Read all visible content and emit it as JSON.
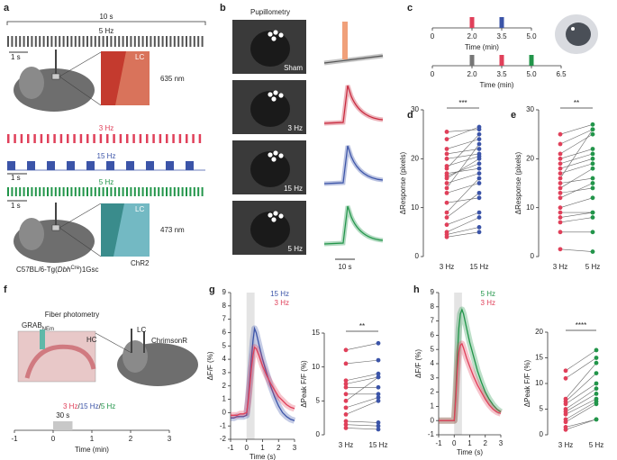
{
  "panel_labels": [
    "a",
    "b",
    "c",
    "d",
    "e",
    "f",
    "g",
    "h"
  ],
  "panel_a": {
    "duration": "10 s",
    "top_freq": "5 Hz",
    "scales": [
      "1 s",
      "1 s",
      "1 s"
    ],
    "region_top": "LC",
    "wavelength_top": "635 nm",
    "freq_red": "3 Hz",
    "freq_blue": "15 Hz",
    "freq_green": "5 Hz",
    "region_bottom": "LC",
    "opsin": "ChR2",
    "wavelength_bottom": "473 nm",
    "strain": "C57BL/6-Tg(",
    "strain_gene": "Dbh",
    "strain_sup": "Cre",
    "strain_end": ")1Gsc"
  },
  "panel_b": {
    "title": "Pupillometry",
    "conditions": [
      "Sham",
      "3 Hz",
      "15 Hz",
      "5 Hz"
    ],
    "scale": "10 s"
  },
  "panel_f": {
    "title": "Fiber photometry",
    "sensor": "GRAB",
    "sensor_sub": "NEm",
    "region_hc": "HC",
    "region_lc": "LC",
    "opsin": "ChrimsonR",
    "freqs": [
      "3 Hz",
      "15 Hz",
      "5 Hz"
    ],
    "separator": "/"
  },
  "chart_data": [
    {
      "type": "timeline",
      "xlim": [
        0,
        5
      ],
      "xticks": [
        0,
        {
          "value": 2,
          "label": "2.0"
        },
        {
          "value": 3.5,
          "label": "3.5"
        },
        {
          "value": 5,
          "label": "5.0"
        }
      ],
      "xlabel": "Time (min)",
      "events": [
        {
          "x": 2,
          "color": "#e0405a"
        },
        {
          "x": 3.5,
          "color": "#3b54a8"
        }
      ]
    },
    {
      "type": "timeline",
      "xlim": [
        0,
        6.5
      ],
      "xticks": [
        0,
        {
          "value": 2,
          "label": "2.0"
        },
        {
          "value": 3.5,
          "label": "3.5"
        },
        {
          "value": 5,
          "label": "5.0"
        },
        {
          "value": 6.5,
          "label": "6.5"
        }
      ],
      "xlabel": "Time (min)",
      "events": [
        {
          "x": 2,
          "color": "#777777"
        },
        {
          "x": 3.5,
          "color": "#e0405a"
        },
        {
          "x": 5,
          "color": "#22954a"
        }
      ]
    },
    {
      "type": "paired",
      "categories": [
        "3 Hz",
        "15 Hz"
      ],
      "ylabel": "ΔResponse (pixels)",
      "annotation": "***",
      "ylim": [
        0,
        30
      ],
      "yticks": [
        0,
        10,
        20,
        30
      ],
      "groups": [
        {
          "color": "#e0405a",
          "values": [
            25.5,
            24,
            22,
            21,
            20,
            18.5,
            18,
            17,
            16.5,
            16,
            15,
            14,
            13,
            11,
            9,
            8,
            6.5,
            5,
            4.5,
            4
          ]
        },
        {
          "color": "#3b54a8",
          "values": [
            26,
            26.5,
            24,
            22,
            21,
            20.5,
            25,
            18,
            19,
            20,
            17,
            23,
            15,
            12,
            16,
            13,
            9,
            8,
            6,
            5
          ]
        }
      ]
    },
    {
      "type": "paired",
      "categories": [
        "3 Hz",
        "5 Hz"
      ],
      "ylabel": "ΔResponse (pixels)",
      "annotation": "**",
      "ylim": [
        0,
        30
      ],
      "yticks": [
        0,
        10,
        20,
        30
      ],
      "groups": [
        {
          "color": "#e0405a",
          "values": [
            25,
            23,
            21,
            20,
            19,
            18,
            17,
            16,
            15,
            14,
            13,
            12,
            10,
            9,
            8,
            7,
            5,
            1.5
          ]
        },
        {
          "color": "#22954a",
          "values": [
            27,
            26,
            25,
            22,
            21,
            20,
            19,
            26,
            16,
            18,
            14,
            15,
            12,
            9,
            9,
            8,
            5,
            1
          ]
        }
      ]
    },
    {
      "type": "timeline",
      "xlim": [
        -1,
        3
      ],
      "xticks": [
        -1,
        0,
        1,
        2,
        3
      ],
      "xlabel": "Time (min)",
      "events": [],
      "block": {
        "x": [
          0,
          0.5
        ],
        "label": "30 s",
        "color": "#c8c8c8"
      }
    },
    {
      "type": "line",
      "xlim": [
        -1,
        3
      ],
      "xticks": [
        -1,
        0,
        1,
        2,
        3
      ],
      "ylim": [
        -2,
        9
      ],
      "yticks": [
        -2,
        -1,
        0,
        1,
        2,
        3,
        4,
        5,
        6,
        7,
        8,
        9
      ],
      "xlabel": "Time (s)",
      "ylabel": "ΔF/F (%)",
      "shade": [
        0,
        0.5
      ],
      "x": [
        -1,
        -0.8,
        -0.6,
        -0.4,
        -0.2,
        0,
        0.1,
        0.2,
        0.3,
        0.4,
        0.5,
        0.6,
        0.8,
        1.0,
        1.25,
        1.5,
        1.75,
        2.0,
        2.25,
        2.5,
        2.75,
        3.0
      ],
      "series": [
        {
          "name": "15 Hz",
          "color": "#3b54a8",
          "values": [
            -0.4,
            -0.4,
            -0.3,
            -0.3,
            -0.3,
            -0.2,
            1,
            2.5,
            4,
            5.4,
            6.3,
            6,
            5,
            4,
            3,
            2,
            1.2,
            0.5,
            0,
            -0.3,
            -0.5,
            -0.6
          ]
        },
        {
          "name": "3 Hz",
          "color": "#e0405a",
          "values": [
            -0.2,
            -0.2,
            -0.2,
            -0.1,
            -0.1,
            0,
            0.8,
            2,
            3.3,
            4.3,
            4.9,
            4.8,
            4.2,
            3.5,
            2.8,
            2.2,
            1.7,
            1.2,
            0.9,
            0.6,
            0.4,
            0.3
          ]
        }
      ]
    },
    {
      "type": "paired",
      "categories": [
        "3 Hz",
        "15 Hz"
      ],
      "ylabel": "ΔPeak F/F (%)",
      "annotation": "**",
      "ylim": [
        0,
        15
      ],
      "yticks": [
        0,
        5,
        10,
        15
      ],
      "groups": [
        {
          "color": "#e0405a",
          "values": [
            12.5,
            10.5,
            8,
            7.5,
            7,
            6,
            5,
            4,
            3,
            2,
            1.5,
            1
          ]
        },
        {
          "color": "#3b54a8",
          "values": [
            13.5,
            11,
            9,
            8.5,
            7,
            6,
            8.5,
            5.5,
            5,
            1.8,
            1.3,
            0.8
          ]
        }
      ]
    },
    {
      "type": "line",
      "xlim": [
        -1,
        3
      ],
      "xticks": [
        -1,
        0,
        1,
        2,
        3
      ],
      "ylim": [
        -1,
        9
      ],
      "yticks": [
        -1,
        0,
        1,
        2,
        3,
        4,
        5,
        6,
        7,
        8,
        9
      ],
      "xlabel": "Time (s)",
      "ylabel": "ΔF/F (%)",
      "shade": [
        0,
        0.5
      ],
      "x": [
        -1,
        -0.8,
        -0.6,
        -0.4,
        -0.2,
        0,
        0.1,
        0.2,
        0.3,
        0.4,
        0.5,
        0.6,
        0.8,
        1.0,
        1.25,
        1.5,
        1.75,
        2.0,
        2.25,
        2.5,
        2.75,
        3.0
      ],
      "series": [
        {
          "name": "5 Hz",
          "color": "#22954a",
          "values": [
            0,
            0,
            0,
            0,
            0,
            0,
            2,
            4.5,
            6.5,
            7.5,
            7.8,
            7.5,
            6.5,
            5.5,
            4.5,
            3.5,
            2.7,
            2,
            1.5,
            1.1,
            0.8,
            0.6
          ]
        },
        {
          "name": "3 Hz",
          "color": "#e0405a",
          "values": [
            0,
            0,
            0,
            0,
            0,
            0,
            1.5,
            3.5,
            4.8,
            5.3,
            5.4,
            5.1,
            4.4,
            3.8,
            3.1,
            2.5,
            2,
            1.5,
            1.1,
            0.8,
            0.6,
            0.5
          ]
        }
      ]
    },
    {
      "type": "paired",
      "categories": [
        "3 Hz",
        "5 Hz"
      ],
      "ylabel": "ΔPeak F/F (%)",
      "annotation": "****",
      "ylim": [
        0,
        20
      ],
      "yticks": [
        0,
        5,
        10,
        15,
        20
      ],
      "groups": [
        {
          "color": "#e0405a",
          "values": [
            12.5,
            11,
            7,
            6.5,
            6,
            5,
            4.5,
            4,
            3,
            2.5,
            1.5,
            1
          ]
        },
        {
          "color": "#22954a",
          "values": [
            16.5,
            15,
            14,
            12,
            10,
            9,
            8,
            7,
            6.5,
            6,
            3,
            3
          ]
        }
      ]
    }
  ]
}
